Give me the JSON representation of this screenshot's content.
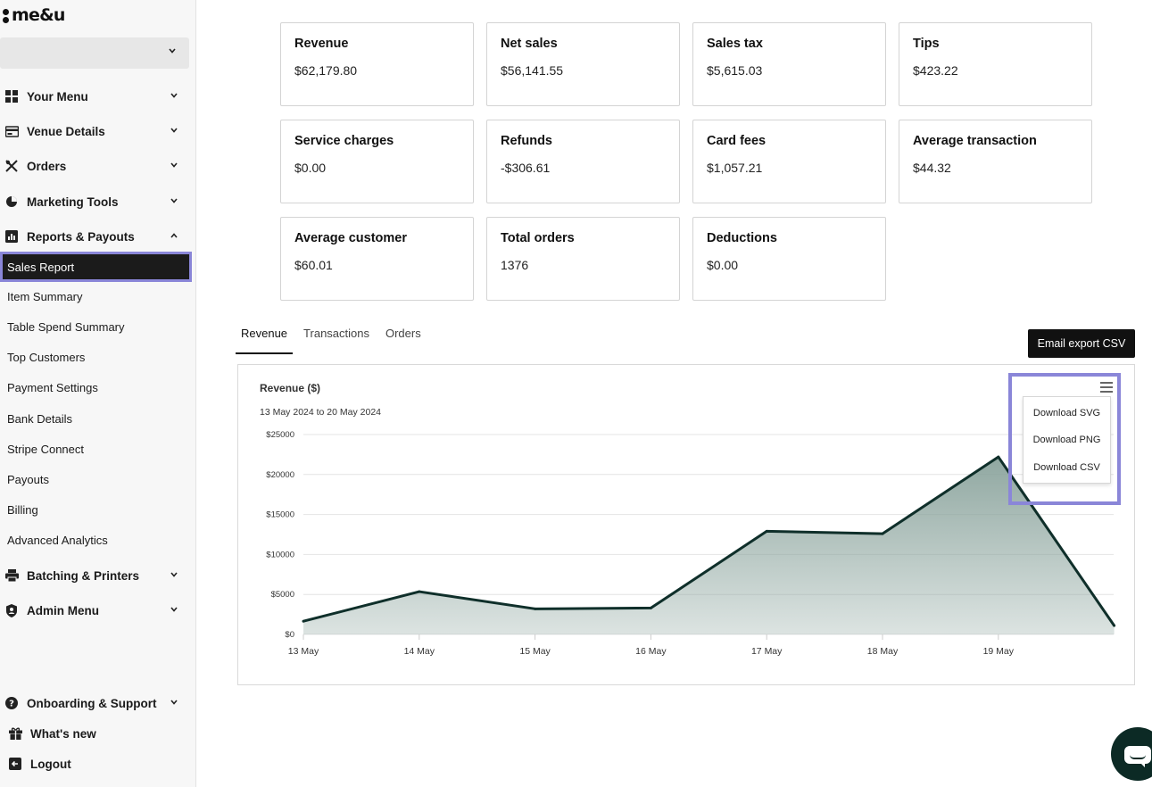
{
  "brand": {
    "logo_text": "me&u"
  },
  "sidebar": {
    "venue_select_value": "",
    "sections": [
      {
        "label": "Your Menu",
        "icon": "grid-icon",
        "expanded": false
      },
      {
        "label": "Venue Details",
        "icon": "card-icon",
        "expanded": false
      },
      {
        "label": "Orders",
        "icon": "utensils-icon",
        "expanded": false
      },
      {
        "label": "Marketing Tools",
        "icon": "pie-chart-icon",
        "expanded": false
      },
      {
        "label": "Reports & Payouts",
        "icon": "bar-chart-icon",
        "expanded": true
      },
      {
        "label": "Batching & Printers",
        "icon": "printer-icon",
        "expanded": false
      },
      {
        "label": "Admin Menu",
        "icon": "admin-shield-icon",
        "expanded": false
      }
    ],
    "report_items": [
      "Sales Report",
      "Item Summary",
      "Table Spend Summary",
      "Top Customers",
      "Payment Settings",
      "Bank Details",
      "Stripe Connect",
      "Payouts",
      "Billing",
      "Advanced Analytics"
    ],
    "active_item": "Sales Report",
    "footer": {
      "support": "Onboarding & Support",
      "whats_new": "What's new",
      "logout": "Logout"
    }
  },
  "summary_cards": [
    {
      "label": "Revenue",
      "value": "$62,179.80"
    },
    {
      "label": "Net sales",
      "value": "$56,141.55"
    },
    {
      "label": "Sales tax",
      "value": "$5,615.03"
    },
    {
      "label": "Tips",
      "value": "$423.22"
    },
    {
      "label": "Service charges",
      "value": "$0.00"
    },
    {
      "label": "Refunds",
      "value": "-$306.61"
    },
    {
      "label": "Card fees",
      "value": "$1,057.21"
    },
    {
      "label": "Average transaction",
      "value": "$44.32"
    },
    {
      "label": "Average customer",
      "value": "$60.01"
    },
    {
      "label": "Total orders",
      "value": "1376"
    },
    {
      "label": "Deductions",
      "value": "$0.00"
    }
  ],
  "tabs": [
    "Revenue",
    "Transactions",
    "Orders"
  ],
  "active_tab": "Revenue",
  "export_button": "Email export CSV",
  "download_menu": [
    "Download SVG",
    "Download PNG",
    "Download CSV"
  ],
  "colors": {
    "accent_highlight": "#8a86d8",
    "series_line": "#0f2f2a",
    "series_fill": "#8aa39c",
    "chat": "#0c2a25"
  },
  "chart_data": {
    "type": "area",
    "title": "Revenue ($)",
    "subtitle": "13 May 2024 to 20 May 2024",
    "categories": [
      "13 May",
      "14 May",
      "15 May",
      "16 May",
      "17 May",
      "18 May",
      "19 May",
      "20 May"
    ],
    "x_tick_labels": [
      "13 May",
      "14 May",
      "15 May",
      "16 May",
      "17 May",
      "18 May",
      "19 May"
    ],
    "values": [
      1650,
      5350,
      3200,
      3300,
      12900,
      12600,
      22200,
      1100
    ],
    "y_ticks": [
      0,
      5000,
      10000,
      15000,
      20000,
      25000
    ],
    "y_tick_labels": [
      "$0",
      "$5000",
      "$10000",
      "$15000",
      "$20000",
      "$25000"
    ],
    "ylim": [
      0,
      25000
    ],
    "grid": true,
    "legend": "none"
  }
}
